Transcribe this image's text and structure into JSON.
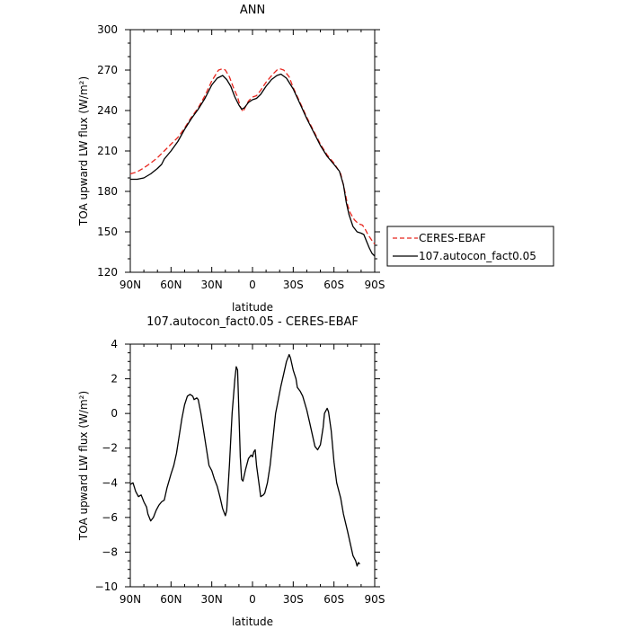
{
  "chart_data": [
    {
      "type": "line",
      "title": "ANN",
      "xlabel": "latitude",
      "ylabel": "TOA upward LW flux (W/m²)",
      "xlim": [
        90,
        -90
      ],
      "ylim": [
        120,
        300
      ],
      "x_ticks": [
        {
          "value": 90,
          "label": "90N"
        },
        {
          "value": 60,
          "label": "60N"
        },
        {
          "value": 30,
          "label": "30N"
        },
        {
          "value": 0,
          "label": "0"
        },
        {
          "value": -30,
          "label": "30S"
        },
        {
          "value": -60,
          "label": "60S"
        },
        {
          "value": -90,
          "label": "90S"
        }
      ],
      "y_ticks": [
        120,
        150,
        180,
        210,
        240,
        270,
        300
      ],
      "legend_position": "outside-right",
      "series": [
        {
          "name": "CERES-EBAF",
          "color": "#e8261e",
          "dash": "dashed",
          "points": [
            [
              90,
              193
            ],
            [
              85,
              194.5
            ],
            [
              80,
              197.5
            ],
            [
              75,
              201
            ],
            [
              70,
              205
            ],
            [
              65,
              210
            ],
            [
              60,
              215
            ],
            [
              55,
              220
            ],
            [
              50,
              227
            ],
            [
              45,
              235
            ],
            [
              40,
              242
            ],
            [
              35,
              251
            ],
            [
              30,
              262
            ],
            [
              25,
              270
            ],
            [
              22,
              271
            ],
            [
              20,
              270
            ],
            [
              17,
              265
            ],
            [
              14,
              257
            ],
            [
              11,
              250
            ],
            [
              9,
              243
            ],
            [
              7,
              239
            ],
            [
              5,
              243
            ],
            [
              3,
              247
            ],
            [
              0,
              250
            ],
            [
              -3,
              251
            ],
            [
              -6,
              255
            ],
            [
              -10,
              261
            ],
            [
              -15,
              267
            ],
            [
              -18,
              270
            ],
            [
              -20,
              271
            ],
            [
              -23,
              270
            ],
            [
              -27,
              265
            ],
            [
              -30,
              257
            ],
            [
              -35,
              246
            ],
            [
              -40,
              235
            ],
            [
              -45,
              225
            ],
            [
              -50,
              215
            ],
            [
              -55,
              207
            ],
            [
              -60,
              201
            ],
            [
              -65,
              193
            ],
            [
              -68,
              180
            ],
            [
              -70,
              170
            ],
            [
              -72,
              164
            ],
            [
              -75,
              159
            ],
            [
              -78,
              156
            ],
            [
              -81,
              155
            ],
            [
              -83,
              152
            ],
            [
              -85,
              148
            ],
            [
              -87,
              145
            ],
            [
              -89,
              142
            ],
            [
              -90,
              141
            ]
          ]
        },
        {
          "name": "107.autocon_fact0.05",
          "color": "#000000",
          "dash": "solid",
          "points": [
            [
              90,
              189
            ],
            [
              85,
              189
            ],
            [
              80,
              190
            ],
            [
              75,
              193
            ],
            [
              70,
              197
            ],
            [
              67,
              200
            ],
            [
              65,
              204
            ],
            [
              60,
              210
            ],
            [
              55,
              217
            ],
            [
              50,
              226
            ],
            [
              45,
              234
            ],
            [
              40,
              241
            ],
            [
              35,
              249
            ],
            [
              30,
              259
            ],
            [
              26,
              264
            ],
            [
              22,
              266
            ],
            [
              19,
              263
            ],
            [
              16,
              258
            ],
            [
              13,
              250
            ],
            [
              10,
              244
            ],
            [
              8,
              241
            ],
            [
              6,
              242
            ],
            [
              3,
              246
            ],
            [
              0,
              248
            ],
            [
              -3,
              249
            ],
            [
              -6,
              252
            ],
            [
              -10,
              258
            ],
            [
              -14,
              263
            ],
            [
              -18,
              266
            ],
            [
              -21,
              267
            ],
            [
              -25,
              264
            ],
            [
              -30,
              256
            ],
            [
              -35,
              245
            ],
            [
              -40,
              234
            ],
            [
              -45,
              224
            ],
            [
              -50,
              214
            ],
            [
              -55,
              206
            ],
            [
              -60,
              200
            ],
            [
              -64,
              195
            ],
            [
              -67,
              185
            ],
            [
              -69,
              172
            ],
            [
              -71,
              163
            ],
            [
              -74,
              154
            ],
            [
              -77,
              150
            ],
            [
              -80,
              149
            ],
            [
              -82,
              148
            ],
            [
              -84,
              143
            ],
            [
              -86,
              138
            ],
            [
              -88,
              134
            ],
            [
              -90,
              132
            ]
          ]
        }
      ]
    },
    {
      "type": "line",
      "title": "107.autocon_fact0.05 - CERES-EBAF",
      "xlabel": "latitude",
      "ylabel": "TOA upward LW flux (W/m²)",
      "xlim": [
        90,
        -90
      ],
      "ylim": [
        -10,
        4
      ],
      "x_ticks": [
        {
          "value": 90,
          "label": "90N"
        },
        {
          "value": 60,
          "label": "60N"
        },
        {
          "value": 30,
          "label": "30N"
        },
        {
          "value": 0,
          "label": "0"
        },
        {
          "value": -30,
          "label": "30S"
        },
        {
          "value": -60,
          "label": "60S"
        },
        {
          "value": -90,
          "label": "90S"
        }
      ],
      "y_ticks": [
        -10,
        -8,
        -6,
        -4,
        -2,
        0,
        2,
        4
      ],
      "series": [
        {
          "color": "#000000",
          "dash": "solid",
          "points": [
            [
              90,
              -4.1
            ],
            [
              88,
              -4.0
            ],
            [
              86,
              -4.5
            ],
            [
              84,
              -4.8
            ],
            [
              82,
              -4.7
            ],
            [
              80,
              -5.1
            ],
            [
              78,
              -5.4
            ],
            [
              77,
              -5.8
            ],
            [
              75,
              -6.2
            ],
            [
              73,
              -6.0
            ],
            [
              71,
              -5.6
            ],
            [
              69,
              -5.3
            ],
            [
              67,
              -5.1
            ],
            [
              65,
              -5.0
            ],
            [
              63,
              -4.3
            ],
            [
              60,
              -3.5
            ],
            [
              58,
              -3.0
            ],
            [
              56,
              -2.3
            ],
            [
              54,
              -1.3
            ],
            [
              52,
              -0.3
            ],
            [
              50,
              0.5
            ],
            [
              48,
              1.0
            ],
            [
              46,
              1.1
            ],
            [
              44,
              1.0
            ],
            [
              43,
              0.8
            ],
            [
              41,
              0.9
            ],
            [
              40,
              0.8
            ],
            [
              38,
              0.0
            ],
            [
              36,
              -1.0
            ],
            [
              34,
              -2.0
            ],
            [
              32,
              -3.0
            ],
            [
              30,
              -3.3
            ],
            [
              28,
              -3.8
            ],
            [
              26,
              -4.2
            ],
            [
              24,
              -4.8
            ],
            [
              22,
              -5.5
            ],
            [
              20,
              -5.9
            ],
            [
              19,
              -5.6
            ],
            [
              17,
              -3.0
            ],
            [
              15,
              0.0
            ],
            [
              13,
              2.0
            ],
            [
              12,
              2.7
            ],
            [
              11,
              2.5
            ],
            [
              10,
              0.0
            ],
            [
              9,
              -2.5
            ],
            [
              8,
              -3.8
            ],
            [
              7,
              -3.9
            ],
            [
              5,
              -3.2
            ],
            [
              3,
              -2.6
            ],
            [
              1,
              -2.4
            ],
            [
              0,
              -2.5
            ],
            [
              -1,
              -2.2
            ],
            [
              -2,
              -2.1
            ],
            [
              -3,
              -3.0
            ],
            [
              -5,
              -4.2
            ],
            [
              -6,
              -4.8
            ],
            [
              -8,
              -4.7
            ],
            [
              -9,
              -4.6
            ],
            [
              -11,
              -4.0
            ],
            [
              -13,
              -3.0
            ],
            [
              -15,
              -1.5
            ],
            [
              -17,
              0.0
            ],
            [
              -19,
              0.8
            ],
            [
              -21,
              1.6
            ],
            [
              -23,
              2.3
            ],
            [
              -25,
              3.0
            ],
            [
              -27,
              3.4
            ],
            [
              -28,
              3.2
            ],
            [
              -30,
              2.5
            ],
            [
              -32,
              2.0
            ],
            [
              -33,
              1.5
            ],
            [
              -35,
              1.3
            ],
            [
              -37,
              1.0
            ],
            [
              -40,
              0.2
            ],
            [
              -42,
              -0.5
            ],
            [
              -44,
              -1.2
            ],
            [
              -46,
              -1.9
            ],
            [
              -48,
              -2.1
            ],
            [
              -50,
              -1.8
            ],
            [
              -52,
              -0.8
            ],
            [
              -53,
              0.0
            ],
            [
              -55,
              0.3
            ],
            [
              -56,
              0.1
            ],
            [
              -58,
              -1.0
            ],
            [
              -60,
              -2.8
            ],
            [
              -62,
              -4.0
            ],
            [
              -65,
              -4.9
            ],
            [
              -67,
              -5.8
            ],
            [
              -70,
              -6.8
            ],
            [
              -72,
              -7.5
            ],
            [
              -74,
              -8.2
            ],
            [
              -76,
              -8.5
            ],
            [
              -77,
              -8.8
            ],
            [
              -78,
              -8.6
            ],
            [
              -79,
              -8.7
            ]
          ]
        }
      ]
    }
  ]
}
